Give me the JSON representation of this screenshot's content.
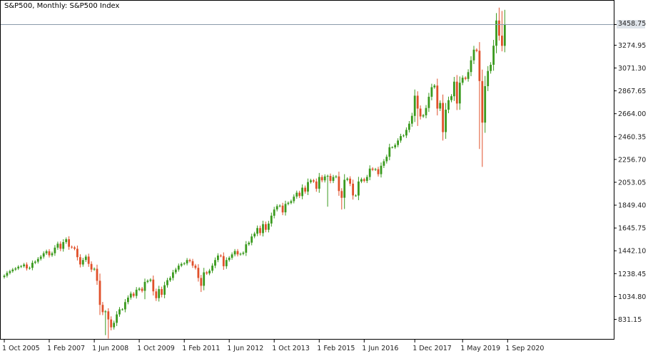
{
  "title": "S&P500, Monthly:  S&P500 Index",
  "current_price_label": "3458.75",
  "chart_data": {
    "type": "candlestick",
    "title": "S&P500, Monthly:  S&P500 Index",
    "symbol": "S&P500",
    "timeframe": "Monthly",
    "description": "S&P500 Index",
    "current_price": 3458.75,
    "ylim": [
      680,
      3680
    ],
    "y_ticks": [
      {
        "value": 3458.75,
        "label": "3458.75"
      },
      {
        "value": 3274.95,
        "label": "3274.95"
      },
      {
        "value": 3071.3,
        "label": "3071.30"
      },
      {
        "value": 2867.65,
        "label": "2867.65"
      },
      {
        "value": 2664.0,
        "label": "2664.00"
      },
      {
        "value": 2460.35,
        "label": "2460.35"
      },
      {
        "value": 2256.7,
        "label": "2256.70"
      },
      {
        "value": 2053.05,
        "label": "2053.05"
      },
      {
        "value": 1849.4,
        "label": "1849.40"
      },
      {
        "value": 1645.75,
        "label": "1645.75"
      },
      {
        "value": 1442.1,
        "label": "1442.10"
      },
      {
        "value": 1238.45,
        "label": "1238.45"
      },
      {
        "value": 1034.8,
        "label": "1034.80"
      },
      {
        "value": 831.15,
        "label": "831.15"
      }
    ],
    "x_ticks": [
      {
        "index": 0,
        "label": "1 Oct 2005"
      },
      {
        "index": 16,
        "label": "1 Feb 2007"
      },
      {
        "index": 32,
        "label": "1 Jun 2008"
      },
      {
        "index": 48,
        "label": "1 Oct 2009"
      },
      {
        "index": 64,
        "label": "1 Feb 2011"
      },
      {
        "index": 80,
        "label": "1 Jun 2012"
      },
      {
        "index": 96,
        "label": "1 Oct 2013"
      },
      {
        "index": 112,
        "label": "1 Feb 2015"
      },
      {
        "index": 128,
        "label": "1 Jun 2016"
      },
      {
        "index": 146,
        "label": "1 Dec 2017"
      },
      {
        "index": 163,
        "label": "1 May 2019"
      },
      {
        "index": 179,
        "label": "1 Sep 2020"
      }
    ],
    "up_color": "#3a9a1e",
    "down_color": "#e0502a",
    "closes": [
      1220,
      1245,
      1260,
      1275,
      1285,
      1300,
      1305,
      1320,
      1285,
      1290,
      1335,
      1345,
      1370,
      1390,
      1420,
      1438,
      1402,
      1420,
      1470,
      1505,
      1460,
      1520,
      1545,
      1478,
      1472,
      1460,
      1385,
      1320,
      1360,
      1390,
      1325,
      1275,
      1282,
      1175,
      960,
      895,
      902,
      830,
      760,
      800,
      875,
      920,
      920,
      985,
      1025,
      1060,
      1040,
      1095,
      1105,
      1085,
      1165,
      1175,
      1185,
      1080,
      1020,
      1100,
      1050,
      1135,
      1180,
      1200,
      1250,
      1275,
      1310,
      1325,
      1330,
      1360,
      1350,
      1310,
      1290,
      1200,
      1130,
      1250,
      1240,
      1265,
      1310,
      1360,
      1400,
      1395,
      1305,
      1360,
      1380,
      1410,
      1440,
      1410,
      1415,
      1425,
      1500,
      1515,
      1570,
      1595,
      1645,
      1600,
      1680,
      1630,
      1685,
      1755,
      1810,
      1840,
      1845,
      1785,
      1860,
      1870,
      1885,
      1925,
      1960,
      1930,
      2005,
      1970,
      2055,
      2070,
      2060,
      1995,
      2100,
      2070,
      2105,
      2110,
      2065,
      2100,
      2105,
      1975,
      1915,
      2075,
      2085,
      2040,
      1935,
      1935,
      2060,
      2080,
      2065,
      2100,
      2175,
      2165,
      2170,
      2125,
      2200,
      2240,
      2280,
      2365,
      2365,
      2385,
      2425,
      2465,
      2470,
      2520,
      2575,
      2645,
      2825,
      2710,
      2640,
      2650,
      2715,
      2815,
      2900,
      2915,
      2710,
      2760,
      2500,
      2700,
      2785,
      2820,
      2950,
      2755,
      2940,
      2985,
      2975,
      3035,
      3140,
      3235,
      3225,
      2955,
      2585,
      2910,
      3045,
      3100,
      3270,
      3495,
      3360,
      3269,
      3458.75
    ],
    "lows": {
      "34": 870,
      "36": 690,
      "37": 660,
      "50": 1010,
      "70": 1075,
      "115": 1835,
      "120": 1810,
      "121": 1815,
      "147": 2555,
      "169": 2350,
      "170": 2190,
      "177": 3220
    }
  }
}
